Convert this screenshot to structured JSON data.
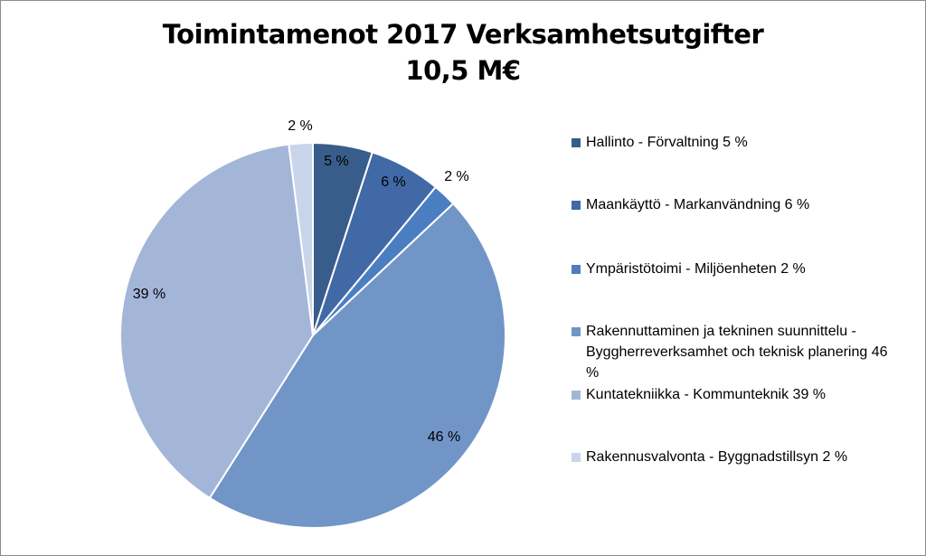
{
  "chart_data": {
    "type": "pie",
    "title": "Toimintamenot 2017 Verksamhetsutgifter",
    "subtitle": "10,5 M€",
    "legend_position": "right",
    "slices": [
      {
        "legend": "Hallinto - Förvaltning  5 %",
        "label": "5 %",
        "value": 5,
        "color": "#385d8a"
      },
      {
        "legend": "Maankäyttö - Markanvändning  6 %",
        "label": "6 %",
        "value": 6,
        "color": "#4069a6"
      },
      {
        "legend": "Ympäristötoimi - Miljöenheten 2 %",
        "label": "2 %",
        "value": 2,
        "color": "#4a7ec1"
      },
      {
        "legend": "Rakennuttaminen ja tekninen suunnittelu - Byggherreverksamhet och teknisk planering 46 %",
        "label": "46 %",
        "value": 46,
        "color": "#7295c8"
      },
      {
        "legend": "Kuntatekniikka - Kommunteknik  39 %",
        "label": "39 %",
        "value": 39,
        "color": "#a3b6d8"
      },
      {
        "legend": "Rakennusvalvonta - Byggnadstillsyn  2 %",
        "label": "2 %",
        "value": 2,
        "color": "#c9d5ea"
      }
    ]
  }
}
